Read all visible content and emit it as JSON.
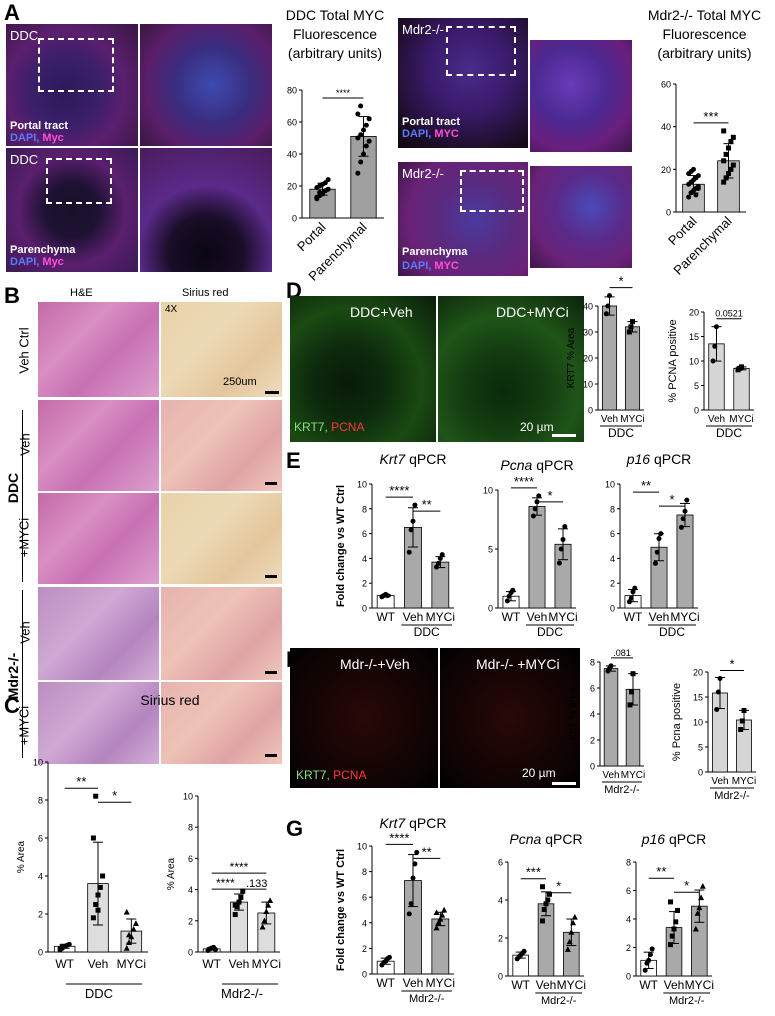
{
  "panels": {
    "A": "A",
    "B": "B",
    "C": "C",
    "D": "D",
    "E": "E",
    "F": "F",
    "G": "G"
  },
  "panelA": {
    "ddc_title": [
      "DDC Total MYC",
      "Fluorescence",
      "(arbitrary units)"
    ],
    "mdr_title": [
      "Mdr2-/- Total MYC",
      "Fluorescence",
      "(arbitrary units)"
    ],
    "ddc_label_1": "DDC",
    "ddc_label_2": "DDC",
    "mdr_label_1": "Mdr2-/-",
    "mdr_label_2": "Mdr2-/-",
    "portal_tract": "Portal tract",
    "parenchyma": "Parenchyma",
    "dapi": "DAPI,",
    "myc": "Myc",
    "myc_caps": "MYC"
  },
  "panelB": {
    "he": "H&E",
    "sirius": "Sirius red",
    "mag": "4X",
    "scale": "250um",
    "rows": [
      "Veh Ctrl",
      "Veh",
      "+MYCi",
      "Veh",
      "+MYCi"
    ],
    "groups": [
      "DDC",
      "Mdr2-/-"
    ]
  },
  "panelC": {
    "title": "Sirius red",
    "group1": "DDC",
    "group2": "Mdr2-/-"
  },
  "panelD": {
    "left": "DDC+Veh",
    "right": "DDC+MYCi",
    "krt7": "KRT7,",
    "pcna": "PCNA",
    "scale": "20 µm"
  },
  "panelF": {
    "left": "Mdr-/-+Veh",
    "right": "Mdr-/- +MYCi",
    "krt7": "KRT7,",
    "pcna": "PCNA",
    "scale": "20 µm"
  },
  "chart_data": [
    {
      "id": "A1",
      "type": "bar",
      "categories": [
        "Portal",
        "Parenchymal"
      ],
      "values": [
        18,
        51
      ],
      "ylim": [
        0,
        80
      ],
      "yticks": [
        0,
        20,
        40,
        60,
        80
      ],
      "sig": [
        "****"
      ],
      "points": [
        [
          12,
          14,
          15,
          17,
          18,
          19,
          20,
          21,
          22,
          24,
          13,
          16
        ],
        [
          28,
          35,
          40,
          45,
          48,
          50,
          52,
          55,
          58,
          62,
          65,
          70
        ]
      ]
    },
    {
      "id": "A2",
      "type": "bar",
      "categories": [
        "Portal",
        "Parenchymal"
      ],
      "values": [
        13,
        24
      ],
      "ylim": [
        0,
        60
      ],
      "yticks": [
        0,
        20,
        40,
        60
      ],
      "sig": [
        "***"
      ],
      "points": [
        [
          7,
          9,
          10,
          11,
          12,
          13,
          14,
          15,
          16,
          17,
          18,
          19,
          20,
          8,
          11
        ],
        [
          14,
          16,
          18,
          20,
          22,
          24,
          27,
          30,
          33,
          35,
          38
        ]
      ]
    },
    {
      "id": "C1",
      "type": "bar",
      "categories": [
        "WT",
        "Veh",
        "MYCi"
      ],
      "values": [
        0.3,
        3.6,
        1.1
      ],
      "ylim": [
        0,
        10
      ],
      "yticks": [
        0,
        2,
        4,
        6,
        8,
        10
      ],
      "ylabel": "% Area",
      "sig": [
        "**",
        "*"
      ],
      "points": [
        [
          0.1,
          0.2,
          0.3,
          0.35,
          0.4,
          0.2,
          0.3
        ],
        [
          1.8,
          2.5,
          3.0,
          3.4,
          4.0,
          6.0,
          8.2,
          2.2
        ],
        [
          0.2,
          0.5,
          0.8,
          1.2,
          1.5,
          2.1,
          0.9
        ]
      ]
    },
    {
      "id": "C2",
      "type": "bar",
      "categories": [
        "WT",
        "Veh",
        "MYCi"
      ],
      "values": [
        0.2,
        3.2,
        2.5
      ],
      "ylim": [
        0,
        10
      ],
      "yticks": [
        0,
        2,
        4,
        6,
        8,
        10
      ],
      "ylabel": "% Area",
      "sig": [
        "****",
        "****",
        ".133"
      ],
      "points": [
        [
          0.1,
          0.2,
          0.25,
          0.3,
          0.15
        ],
        [
          2.4,
          2.9,
          3.2,
          3.5,
          3.9,
          3.0
        ],
        [
          1.6,
          2.0,
          2.6,
          3.0,
          3.3
        ]
      ]
    },
    {
      "id": "D1",
      "type": "bar",
      "categories": [
        "Veh",
        "MYCi"
      ],
      "values": [
        40,
        32
      ],
      "ylim": [
        0,
        40
      ],
      "yticks": [
        0,
        10,
        20,
        30,
        40
      ],
      "ylabel": "KRT7 % Area",
      "group": "DDC",
      "sig": [
        "*"
      ],
      "points": [
        [
          37,
          40,
          44
        ],
        [
          30,
          32,
          34
        ]
      ]
    },
    {
      "id": "D2",
      "type": "bar",
      "categories": [
        "Veh",
        "MYCi"
      ],
      "values": [
        13.5,
        8.5
      ],
      "ylim": [
        0,
        20
      ],
      "yticks": [
        0,
        5,
        10,
        15,
        20
      ],
      "ylabel": "% PCNA positive",
      "group": "DDC",
      "sig": [
        "0.0521"
      ],
      "points": [
        [
          10,
          13,
          17
        ],
        [
          8.2,
          8.5,
          8.8
        ]
      ]
    },
    {
      "id": "E1",
      "type": "bar",
      "title": "Krt7 qPCR",
      "categories": [
        "WT",
        "Veh",
        "MYCi"
      ],
      "values": [
        1,
        6.5,
        3.7
      ],
      "ylim": [
        0,
        10
      ],
      "yticks": [
        0,
        2,
        4,
        6,
        8,
        10
      ],
      "ylabel": "Fold change vs WT Ctrl",
      "group": "DDC",
      "sig": [
        "****",
        "**"
      ],
      "points": [
        [
          0.9,
          1.0,
          1.1,
          1.0
        ],
        [
          4.5,
          6.3,
          7.0,
          8.3
        ],
        [
          3.3,
          3.6,
          4.0,
          4.3
        ]
      ]
    },
    {
      "id": "E2",
      "type": "bar",
      "title": "Pcna qPCR",
      "categories": [
        "WT",
        "Veh",
        "MYCi"
      ],
      "values": [
        1,
        8.6,
        5.4
      ],
      "ylim": [
        0,
        10
      ],
      "yticks": [
        0,
        5,
        10
      ],
      "group": "DDC",
      "sig": [
        "****",
        "*"
      ],
      "points": [
        [
          0.6,
          1.0,
          1.3,
          1.5
        ],
        [
          7.8,
          8.4,
          9.0,
          9.5
        ],
        [
          3.8,
          5.0,
          5.8,
          6.9
        ]
      ]
    },
    {
      "id": "E3",
      "type": "bar",
      "title": "p16 qPCR",
      "categories": [
        "WT",
        "Veh",
        "MYCi"
      ],
      "values": [
        1,
        4.9,
        7.5
      ],
      "ylim": [
        0,
        10
      ],
      "yticks": [
        0,
        2,
        4,
        6,
        8,
        10
      ],
      "group": "DDC",
      "sig": [
        "**",
        "*"
      ],
      "points": [
        [
          0.5,
          0.8,
          1.3,
          1.6
        ],
        [
          3.6,
          4.5,
          5.6,
          6.0
        ],
        [
          6.5,
          7.2,
          7.8,
          8.7
        ]
      ]
    },
    {
      "id": "F1",
      "type": "bar",
      "categories": [
        "Veh",
        "MYCi"
      ],
      "values": [
        7.5,
        5.9
      ],
      "ylim": [
        0,
        8
      ],
      "yticks": [
        0,
        2,
        4,
        6,
        8
      ],
      "ylabel": "Krt7 % area",
      "group": "Mdr2-/-",
      "sig": [
        ".081"
      ],
      "points": [
        [
          7.3,
          7.5,
          7.7
        ],
        [
          4.7,
          5.7,
          7.1
        ]
      ]
    },
    {
      "id": "F2",
      "type": "bar",
      "categories": [
        "Veh",
        "MYCi"
      ],
      "values": [
        15.8,
        10.4
      ],
      "ylim": [
        0,
        20
      ],
      "yticks": [
        0,
        5,
        10,
        15,
        20
      ],
      "ylabel": "% Pcna positive",
      "group": "Mdr2-/-",
      "sig": [
        "*"
      ],
      "points": [
        [
          12.5,
          16,
          18.7
        ],
        [
          8.5,
          10.2,
          12.3
        ]
      ]
    },
    {
      "id": "G1",
      "type": "bar",
      "title": "Krt7 qPCR",
      "categories": [
        "WT",
        "Veh",
        "MYCi"
      ],
      "values": [
        1,
        7.3,
        4.3
      ],
      "ylim": [
        0,
        10
      ],
      "yticks": [
        0,
        2,
        4,
        6,
        8,
        10
      ],
      "ylabel": "Fold change vs WT Ctrl",
      "group": "Mdr2-/-",
      "sig": [
        "****",
        "**"
      ],
      "points": [
        [
          0.7,
          0.9,
          1.0,
          1.2,
          1.3
        ],
        [
          4.7,
          5.5,
          7.5,
          8.6,
          9.5
        ],
        [
          3.6,
          4.0,
          4.3,
          4.6,
          5.0,
          4.8
        ]
      ]
    },
    {
      "id": "G2",
      "type": "bar",
      "title": "Pcna qPCR",
      "categories": [
        "WT",
        "Veh",
        "MYCi"
      ],
      "values": [
        1.1,
        3.8,
        2.3
      ],
      "ylim": [
        0,
        6
      ],
      "yticks": [
        0,
        2,
        4,
        6
      ],
      "group": "Mdr2-/-",
      "sig": [
        "***",
        "*"
      ],
      "points": [
        [
          0.9,
          1.0,
          1.1,
          1.2,
          1.3
        ],
        [
          2.9,
          3.5,
          3.8,
          4.0,
          4.3,
          4.7
        ],
        [
          1.4,
          1.8,
          2.3,
          2.8,
          3.1
        ]
      ]
    },
    {
      "id": "G3",
      "type": "bar",
      "title": "p16 qPCR",
      "categories": [
        "WT",
        "Veh",
        "MYCi"
      ],
      "values": [
        1.1,
        3.4,
        4.9
      ],
      "ylim": [
        0,
        8
      ],
      "yticks": [
        0,
        2,
        4,
        6,
        8
      ],
      "group": "Mdr2-/-",
      "sig": [
        "**",
        "*"
      ],
      "points": [
        [
          0.4,
          0.9,
          1.1,
          1.5,
          1.9
        ],
        [
          2.2,
          2.8,
          3.3,
          3.8,
          4.6,
          5.2
        ],
        [
          3.3,
          4.4,
          4.8,
          5.5,
          6.3
        ]
      ]
    }
  ]
}
